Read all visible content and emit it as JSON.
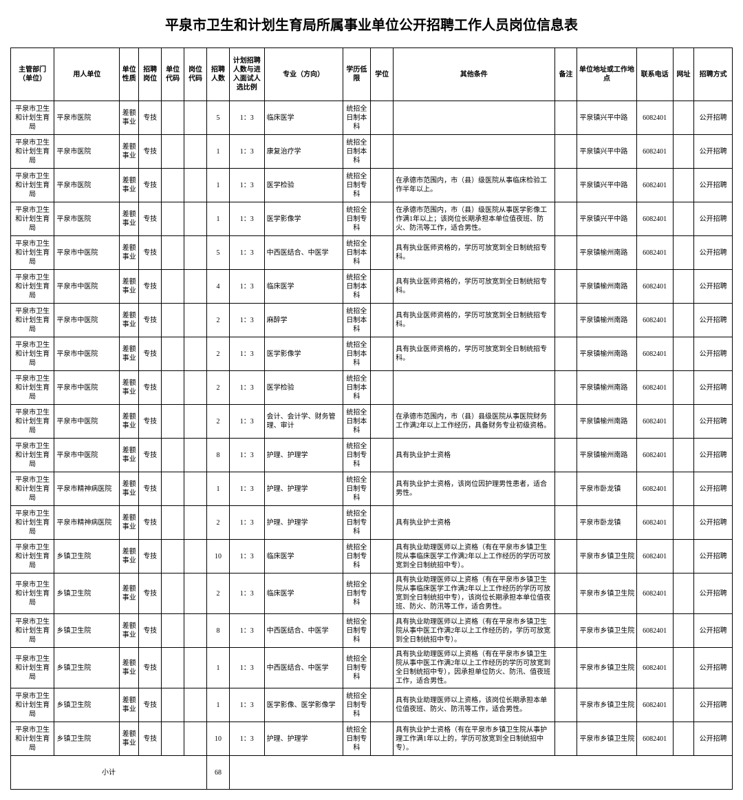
{
  "title": "平泉市卫生和计划生育局所属事业单位公开招聘工作人员岗位信息表",
  "headers": {
    "dept": "主管部门（单位）",
    "unit": "用人单位",
    "nature": "单位性质",
    "post": "招聘岗位",
    "ucode": "单位代码",
    "pcode": "岗位代码",
    "num": "招聘人数",
    "ratio": "计划招聘人数与进入面试人选比例",
    "major": "专业（方向）",
    "edu": "学历低限",
    "degree": "学位",
    "other": "其他条件",
    "note": "备注",
    "addr": "单位地址或工作地点",
    "phone": "联系电话",
    "web": "网址",
    "method": "招聘方式"
  },
  "rows": [
    {
      "dept": "平泉市卫生和计划生育局",
      "unit": "平泉市医院",
      "nature": "差额事业",
      "post": "专技",
      "ucode": "",
      "pcode": "",
      "num": "5",
      "ratio": "1：3",
      "major": "临床医学",
      "edu": "统招全日制本科",
      "degree": "",
      "other": "",
      "note": "",
      "addr": "平泉镇兴平中路",
      "phone": "6082401",
      "web": "",
      "method": "公开招聘"
    },
    {
      "dept": "平泉市卫生和计划生育局",
      "unit": "平泉市医院",
      "nature": "差额事业",
      "post": "专技",
      "ucode": "",
      "pcode": "",
      "num": "1",
      "ratio": "1：3",
      "major": "康复治疗学",
      "edu": "统招全日制本科",
      "degree": "",
      "other": "",
      "note": "",
      "addr": "平泉镇兴平中路",
      "phone": "6082401",
      "web": "",
      "method": "公开招聘"
    },
    {
      "dept": "平泉市卫生和计划生育局",
      "unit": "平泉市医院",
      "nature": "差额事业",
      "post": "专技",
      "ucode": "",
      "pcode": "",
      "num": "1",
      "ratio": "1：3",
      "major": "医学检验",
      "edu": "统招全日制专科",
      "degree": "",
      "other": "在承德市范围内，市（县）级医院从事临床检验工作半年以上。",
      "note": "",
      "addr": "平泉镇兴平中路",
      "phone": "6082401",
      "web": "",
      "method": "公开招聘"
    },
    {
      "dept": "平泉市卫生和计划生育局",
      "unit": "平泉市医院",
      "nature": "差额事业",
      "post": "专技",
      "ucode": "",
      "pcode": "",
      "num": "1",
      "ratio": "1：3",
      "major": "医学影像学",
      "edu": "统招全日制专科",
      "degree": "",
      "other": "在承德市范围内，市（县）级医院从事医学影像工作满1年以上；该岗位长期承担本单位值夜班、防火、防汛等工作，适合男性。",
      "note": "",
      "addr": "平泉镇兴平中路",
      "phone": "6082401",
      "web": "",
      "method": "公开招聘"
    },
    {
      "dept": "平泉市卫生和计划生育局",
      "unit": "平泉市中医院",
      "nature": "差额事业",
      "post": "专技",
      "ucode": "",
      "pcode": "",
      "num": "5",
      "ratio": "1：3",
      "major": "中西医结合、中医学",
      "edu": "统招全日制本科",
      "degree": "",
      "other": "具有执业医师资格的，学历可放宽到全日制统招专科。",
      "note": "",
      "addr": "平泉镇榆州南路",
      "phone": "6082401",
      "web": "",
      "method": "公开招聘"
    },
    {
      "dept": "平泉市卫生和计划生育局",
      "unit": "平泉市中医院",
      "nature": "差额事业",
      "post": "专技",
      "ucode": "",
      "pcode": "",
      "num": "4",
      "ratio": "1：3",
      "major": "临床医学",
      "edu": "统招全日制本科",
      "degree": "",
      "other": "具有执业医师资格的，学历可放宽到全日制统招专科。",
      "note": "",
      "addr": "平泉镇榆州南路",
      "phone": "6082401",
      "web": "",
      "method": "公开招聘"
    },
    {
      "dept": "平泉市卫生和计划生育局",
      "unit": "平泉市中医院",
      "nature": "差额事业",
      "post": "专技",
      "ucode": "",
      "pcode": "",
      "num": "2",
      "ratio": "1：3",
      "major": "麻醉学",
      "edu": "统招全日制本科",
      "degree": "",
      "other": "具有执业医师资格的，学历可放宽到全日制统招专科。",
      "note": "",
      "addr": "平泉镇榆州南路",
      "phone": "6082401",
      "web": "",
      "method": "公开招聘"
    },
    {
      "dept": "平泉市卫生和计划生育局",
      "unit": "平泉市中医院",
      "nature": "差额事业",
      "post": "专技",
      "ucode": "",
      "pcode": "",
      "num": "2",
      "ratio": "1：3",
      "major": "医学影像学",
      "edu": "统招全日制本科",
      "degree": "",
      "other": "具有执业医师资格的，学历可放宽到全日制统招专科。",
      "note": "",
      "addr": "平泉镇榆州南路",
      "phone": "6082401",
      "web": "",
      "method": "公开招聘"
    },
    {
      "dept": "平泉市卫生和计划生育局",
      "unit": "平泉市中医院",
      "nature": "差额事业",
      "post": "专技",
      "ucode": "",
      "pcode": "",
      "num": "2",
      "ratio": "1：3",
      "major": "医学检验",
      "edu": "统招全日制本科",
      "degree": "",
      "other": "",
      "note": "",
      "addr": "平泉镇榆州南路",
      "phone": "6082401",
      "web": "",
      "method": "公开招聘"
    },
    {
      "dept": "平泉市卫生和计划生育局",
      "unit": "平泉市中医院",
      "nature": "差额事业",
      "post": "专技",
      "ucode": "",
      "pcode": "",
      "num": "2",
      "ratio": "1：3",
      "major": "会计、会计学、财务管理、审计",
      "edu": "统招全日制本科",
      "degree": "",
      "other": "在承德市范围内，市（县）县级医院从事医院财务工作满2年以上工作经历，具备财务专业初级资格。",
      "note": "",
      "addr": "平泉镇榆州南路",
      "phone": "6082401",
      "web": "",
      "method": "公开招聘"
    },
    {
      "dept": "平泉市卫生和计划生育局",
      "unit": "平泉市中医院",
      "nature": "差额事业",
      "post": "专技",
      "ucode": "",
      "pcode": "",
      "num": "8",
      "ratio": "1：3",
      "major": "护理、护理学",
      "edu": "统招全日制专科",
      "degree": "",
      "other": "具有执业护士资格",
      "note": "",
      "addr": "平泉镇榆州南路",
      "phone": "6082401",
      "web": "",
      "method": "公开招聘"
    },
    {
      "dept": "平泉市卫生和计划生育局",
      "unit": "平泉市精神病医院",
      "nature": "差额事业",
      "post": "专技",
      "ucode": "",
      "pcode": "",
      "num": "1",
      "ratio": "1：3",
      "major": "护理、护理学",
      "edu": "统招全日制专科",
      "degree": "",
      "other": "具有执业护士资格，该岗位因护理男性患者，适合男性。",
      "note": "",
      "addr": "平泉市卧龙镇",
      "phone": "6082401",
      "web": "",
      "method": "公开招聘"
    },
    {
      "dept": "平泉市卫生和计划生育局",
      "unit": "平泉市精神病医院",
      "nature": "差额事业",
      "post": "专技",
      "ucode": "",
      "pcode": "",
      "num": "2",
      "ratio": "1：3",
      "major": "护理、护理学",
      "edu": "统招全日制专科",
      "degree": "",
      "other": "具有执业护士资格",
      "note": "",
      "addr": "平泉市卧龙镇",
      "phone": "6082401",
      "web": "",
      "method": "公开招聘"
    },
    {
      "dept": "平泉市卫生和计划生育局",
      "unit": "乡镇卫生院",
      "nature": "差额事业",
      "post": "专技",
      "ucode": "",
      "pcode": "",
      "num": "10",
      "ratio": "1：3",
      "major": "临床医学",
      "edu": "统招全日制专科",
      "degree": "",
      "other": "具有执业助理医师以上资格（有在平泉市乡镇卫生院从事临床医学工作满2年以上工作经历的学历可放宽到全日制统招中专）。",
      "note": "",
      "addr": "平泉市乡镇卫生院",
      "phone": "6082401",
      "web": "",
      "method": "公开招聘"
    },
    {
      "dept": "平泉市卫生和计划生育局",
      "unit": "乡镇卫生院",
      "nature": "差额事业",
      "post": "专技",
      "ucode": "",
      "pcode": "",
      "num": "2",
      "ratio": "1：3",
      "major": "临床医学",
      "edu": "统招全日制专科",
      "degree": "",
      "other": "具有执业助理医师以上资格（有在平泉市乡镇卫生院从事临床医学工作满2年以上工作经历的学历可放宽到全日制统招中专），该岗位长期承担本单位值夜班、防火、防汛等工作，适合男性。",
      "note": "",
      "addr": "平泉市乡镇卫生院",
      "phone": "6082401",
      "web": "",
      "method": "公开招聘"
    },
    {
      "dept": "平泉市卫生和计划生育局",
      "unit": "乡镇卫生院",
      "nature": "差额事业",
      "post": "专技",
      "ucode": "",
      "pcode": "",
      "num": "8",
      "ratio": "1：3",
      "major": "中西医结合、中医学",
      "edu": "统招全日制专科",
      "degree": "",
      "other": "具有执业助理医师以上资格（有在平泉市乡镇卫生院从事中医工作满2年以上工作经历的，学历可放宽到全日制统招中专）。",
      "note": "",
      "addr": "平泉市乡镇卫生院",
      "phone": "6082401",
      "web": "",
      "method": "公开招聘"
    },
    {
      "dept": "平泉市卫生和计划生育局",
      "unit": "乡镇卫生院",
      "nature": "差额事业",
      "post": "专技",
      "ucode": "",
      "pcode": "",
      "num": "1",
      "ratio": "1：3",
      "major": "中西医结合、中医学",
      "edu": "统招全日制专科",
      "degree": "",
      "other": "具有执业助理医师以上资格（有在平泉市乡镇卫生院从事中医工作满2年以上工作经历的学历可放宽到全日制统招中专），因承担单位防火、防汛、值夜班工作，适合男性。",
      "note": "",
      "addr": "平泉市乡镇卫生院",
      "phone": "6082401",
      "web": "",
      "method": "公开招聘"
    },
    {
      "dept": "平泉市卫生和计划生育局",
      "unit": "乡镇卫生院",
      "nature": "差额事业",
      "post": "专技",
      "ucode": "",
      "pcode": "",
      "num": "1",
      "ratio": "1：3",
      "major": "医学影像、医学影像学",
      "edu": "统招全日制专科",
      "degree": "",
      "other": "具有执业助理医师以上资格，该岗位长期承担本单位值夜班、防火、防汛等工作，适合男性。",
      "note": "",
      "addr": "平泉市乡镇卫生院",
      "phone": "6082401",
      "web": "",
      "method": "公开招聘"
    },
    {
      "dept": "平泉市卫生和计划生育局",
      "unit": "乡镇卫生院",
      "nature": "差额事业",
      "post": "专技",
      "ucode": "",
      "pcode": "",
      "num": "10",
      "ratio": "1：3",
      "major": "护理、护理学",
      "edu": "统招全日制专科",
      "degree": "",
      "other": "具有执业护士资格（有在平泉市乡镇卫生院从事护理工作满1年以上的，学历可放宽到全日制统招中专）。",
      "note": "",
      "addr": "平泉市乡镇卫生院",
      "phone": "6082401",
      "web": "",
      "method": "公开招聘"
    }
  ],
  "subtotal": {
    "label": "小计",
    "num": "68"
  }
}
